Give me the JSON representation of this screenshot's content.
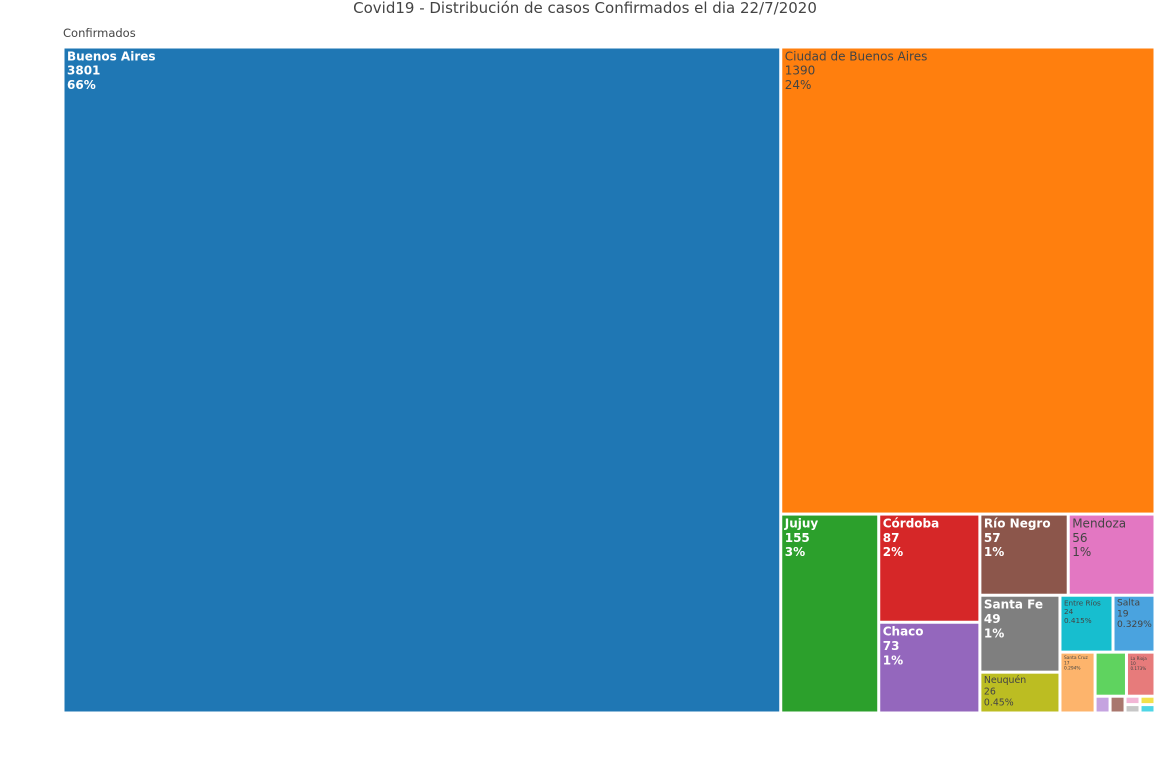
{
  "chart_data": {
    "type": "treemap",
    "title": "Covid19 - Distribución de casos Confirmados el dia 22/7/2020",
    "root": "Confirmados",
    "categories": [
      "Buenos Aires",
      "Ciudad de Buenos Aires",
      "Jujuy",
      "Córdoba",
      "Chaco",
      "Río Negro",
      "Mendoza",
      "Santa Fe",
      "Neuquén",
      "Entre Ríos",
      "Salta",
      "Santa Cruz",
      null,
      "La Rioja",
      null,
      null,
      null,
      null,
      null,
      null
    ],
    "values": [
      3801,
      1390,
      155,
      87,
      73,
      57,
      56,
      49,
      26,
      24,
      19,
      17,
      11,
      10,
      2,
      2,
      1,
      1,
      1,
      1
    ],
    "percent_labels": [
      "66%",
      "24%",
      "3%",
      "2%",
      "1%",
      "1%",
      "1%",
      "1%",
      "0.45%",
      "0.415%",
      "0.329%",
      "0.294%",
      null,
      "0.173%",
      null,
      null,
      null,
      null,
      null,
      null
    ],
    "colors": [
      "#1f77b4",
      "#ff7f0e",
      "#2ca02c",
      "#d62728",
      "#9467bd",
      "#8c564b",
      "#e377c2",
      "#7f7f7f",
      "#bcbd22",
      "#17becf",
      "#4aa3df",
      "#fdb46c",
      "#5fd35f",
      "#e77b7b",
      "#c5a3e0",
      "#a9776e",
      "#f2b6d6",
      "#c7c7c7",
      "#f2e14c",
      "#4fd6e6"
    ]
  }
}
